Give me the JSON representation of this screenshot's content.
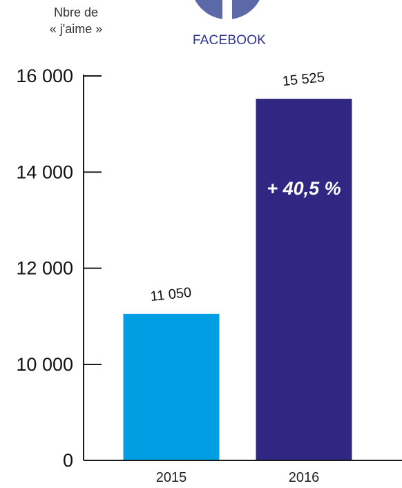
{
  "header": {
    "ylabel_line1": "Nbre de",
    "ylabel_line2": "« j'aime »",
    "brand": "FACEBOOK"
  },
  "colors": {
    "bar_2015": "#009fe3",
    "bar_2016": "#312783",
    "axis": "#1a1a1a",
    "brand": "#2e3192",
    "icon": "#5b69a8"
  },
  "chart_data": {
    "type": "bar",
    "title": "",
    "xlabel": "",
    "ylabel": "Nbre de « j'aime »",
    "categories": [
      "2015",
      "2016"
    ],
    "values": [
      11050,
      15525
    ],
    "value_labels": [
      "11 050",
      "15 525"
    ],
    "annotation": "+ 40,5 %",
    "y_ticks": [
      0,
      10000,
      12000,
      14000,
      16000
    ],
    "y_tick_labels": [
      "0",
      "10 000",
      "12 000",
      "14 000",
      "16 000"
    ],
    "axis_break": true,
    "ylim": [
      0,
      16000
    ],
    "grid": false,
    "legend": "none"
  }
}
